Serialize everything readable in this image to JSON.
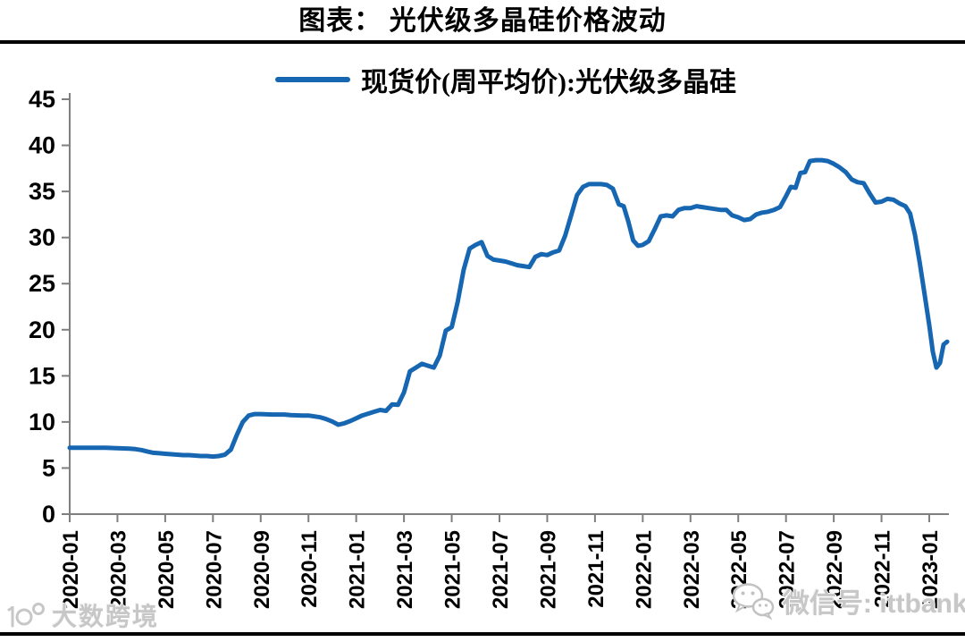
{
  "header": {
    "title": "图表： 光伏级多晶硅价格波动"
  },
  "legend": {
    "label": "现货价(周平均价):光伏级多晶硅",
    "color": "#1666b2"
  },
  "watermarks": {
    "left_text": "大数跨境",
    "left_icon": "dashu-logo-icon",
    "right_text": "微信号: ittbank",
    "right_icon": "wechat-icon"
  },
  "colors": {
    "line": "#1666b2",
    "axis": "#7f7f7f",
    "divider": "#000000",
    "watermark": "#c7c7c7"
  },
  "chart_data": {
    "type": "line",
    "title": "图表： 光伏级多晶硅价格波动",
    "xlabel": "",
    "ylabel": "",
    "ylim": [
      0,
      45
    ],
    "yticks": [
      0,
      5,
      10,
      15,
      20,
      25,
      30,
      35,
      40,
      45
    ],
    "grid": false,
    "legend_position": "top-center",
    "x_unit": "months_since_2020-01",
    "x_tick_months": [
      0,
      2,
      4,
      6,
      8,
      10,
      12,
      14,
      16,
      18,
      20,
      22,
      24,
      26,
      28,
      30,
      32,
      34,
      36
    ],
    "x_tick_labels": [
      "2020-01",
      "2020-03",
      "2020-05",
      "2020-07",
      "2020-09",
      "2020-11",
      "2021-01",
      "2021-03",
      "2021-05",
      "2021-07",
      "2021-09",
      "2021-11",
      "2022-01",
      "2022-03",
      "2022-05",
      "2022-07",
      "2022-09",
      "2022-11",
      "2023-01"
    ],
    "series": [
      {
        "name": "现货价(周平均价):光伏级多晶硅",
        "color": "#1666b2",
        "points": [
          [
            0.0,
            7.2
          ],
          [
            0.5,
            7.2
          ],
          [
            1.0,
            7.2
          ],
          [
            1.5,
            7.2
          ],
          [
            2.0,
            7.15
          ],
          [
            2.5,
            7.1
          ],
          [
            2.75,
            7.05
          ],
          [
            3.0,
            6.95
          ],
          [
            3.25,
            6.8
          ],
          [
            3.5,
            6.65
          ],
          [
            3.75,
            6.6
          ],
          [
            4.0,
            6.55
          ],
          [
            4.25,
            6.5
          ],
          [
            4.5,
            6.45
          ],
          [
            4.75,
            6.4
          ],
          [
            5.0,
            6.4
          ],
          [
            5.25,
            6.35
          ],
          [
            5.5,
            6.3
          ],
          [
            5.75,
            6.3
          ],
          [
            6.0,
            6.25
          ],
          [
            6.25,
            6.3
          ],
          [
            6.5,
            6.45
          ],
          [
            6.75,
            7.0
          ],
          [
            7.0,
            8.6
          ],
          [
            7.25,
            10.0
          ],
          [
            7.5,
            10.7
          ],
          [
            7.75,
            10.85
          ],
          [
            8.0,
            10.85
          ],
          [
            8.5,
            10.8
          ],
          [
            9.0,
            10.8
          ],
          [
            9.25,
            10.75
          ],
          [
            9.75,
            10.7
          ],
          [
            10.0,
            10.7
          ],
          [
            10.25,
            10.6
          ],
          [
            10.5,
            10.5
          ],
          [
            10.75,
            10.3
          ],
          [
            11.0,
            10.05
          ],
          [
            11.25,
            9.7
          ],
          [
            11.5,
            9.85
          ],
          [
            11.75,
            10.1
          ],
          [
            12.0,
            10.4
          ],
          [
            12.25,
            10.7
          ],
          [
            12.5,
            10.9
          ],
          [
            12.75,
            11.1
          ],
          [
            13.0,
            11.3
          ],
          [
            13.25,
            11.2
          ],
          [
            13.5,
            11.9
          ],
          [
            13.75,
            11.85
          ],
          [
            14.0,
            13.2
          ],
          [
            14.25,
            15.5
          ],
          [
            14.5,
            15.9
          ],
          [
            14.75,
            16.3
          ],
          [
            15.0,
            16.1
          ],
          [
            15.25,
            15.9
          ],
          [
            15.5,
            17.2
          ],
          [
            15.75,
            19.9
          ],
          [
            16.0,
            20.3
          ],
          [
            16.25,
            23.0
          ],
          [
            16.5,
            26.5
          ],
          [
            16.75,
            28.8
          ],
          [
            17.0,
            29.2
          ],
          [
            17.25,
            29.5
          ],
          [
            17.5,
            28.0
          ],
          [
            17.75,
            27.6
          ],
          [
            18.0,
            27.5
          ],
          [
            18.25,
            27.4
          ],
          [
            18.5,
            27.2
          ],
          [
            18.75,
            27.0
          ],
          [
            19.0,
            26.9
          ],
          [
            19.25,
            26.8
          ],
          [
            19.5,
            27.9
          ],
          [
            19.75,
            28.2
          ],
          [
            20.0,
            28.1
          ],
          [
            20.25,
            28.4
          ],
          [
            20.5,
            28.6
          ],
          [
            20.75,
            30.2
          ],
          [
            21.0,
            32.4
          ],
          [
            21.25,
            34.6
          ],
          [
            21.5,
            35.5
          ],
          [
            21.75,
            35.8
          ],
          [
            22.0,
            35.8
          ],
          [
            22.25,
            35.8
          ],
          [
            22.5,
            35.7
          ],
          [
            22.75,
            35.3
          ],
          [
            23.0,
            33.6
          ],
          [
            23.2,
            33.4
          ],
          [
            23.4,
            31.7
          ],
          [
            23.6,
            29.7
          ],
          [
            23.8,
            29.1
          ],
          [
            24.0,
            29.2
          ],
          [
            24.25,
            29.6
          ],
          [
            24.5,
            30.9
          ],
          [
            24.75,
            32.3
          ],
          [
            25.0,
            32.4
          ],
          [
            25.25,
            32.3
          ],
          [
            25.5,
            33.0
          ],
          [
            25.75,
            33.2
          ],
          [
            26.0,
            33.2
          ],
          [
            26.25,
            33.4
          ],
          [
            26.5,
            33.3
          ],
          [
            26.75,
            33.2
          ],
          [
            27.0,
            33.1
          ],
          [
            27.25,
            33.0
          ],
          [
            27.5,
            33.0
          ],
          [
            27.75,
            32.4
          ],
          [
            28.0,
            32.2
          ],
          [
            28.25,
            31.9
          ],
          [
            28.5,
            32.0
          ],
          [
            28.75,
            32.5
          ],
          [
            29.0,
            32.7
          ],
          [
            29.25,
            32.8
          ],
          [
            29.5,
            33.0
          ],
          [
            29.75,
            33.3
          ],
          [
            30.0,
            34.5
          ],
          [
            30.2,
            35.5
          ],
          [
            30.4,
            35.4
          ],
          [
            30.6,
            37.0
          ],
          [
            30.8,
            37.1
          ],
          [
            31.0,
            38.3
          ],
          [
            31.25,
            38.4
          ],
          [
            31.5,
            38.4
          ],
          [
            31.75,
            38.3
          ],
          [
            32.0,
            38.0
          ],
          [
            32.25,
            37.6
          ],
          [
            32.5,
            37.1
          ],
          [
            32.75,
            36.3
          ],
          [
            33.0,
            36.0
          ],
          [
            33.25,
            35.9
          ],
          [
            33.5,
            34.8
          ],
          [
            33.75,
            33.8
          ],
          [
            34.0,
            33.9
          ],
          [
            34.25,
            34.2
          ],
          [
            34.5,
            34.1
          ],
          [
            34.75,
            33.7
          ],
          [
            35.0,
            33.4
          ],
          [
            35.2,
            32.6
          ],
          [
            35.4,
            30.3
          ],
          [
            35.6,
            27.3
          ],
          [
            35.8,
            23.9
          ],
          [
            36.0,
            20.5
          ],
          [
            36.15,
            17.6
          ],
          [
            36.3,
            15.9
          ],
          [
            36.45,
            16.4
          ],
          [
            36.6,
            18.4
          ],
          [
            36.75,
            18.7
          ]
        ]
      }
    ]
  }
}
